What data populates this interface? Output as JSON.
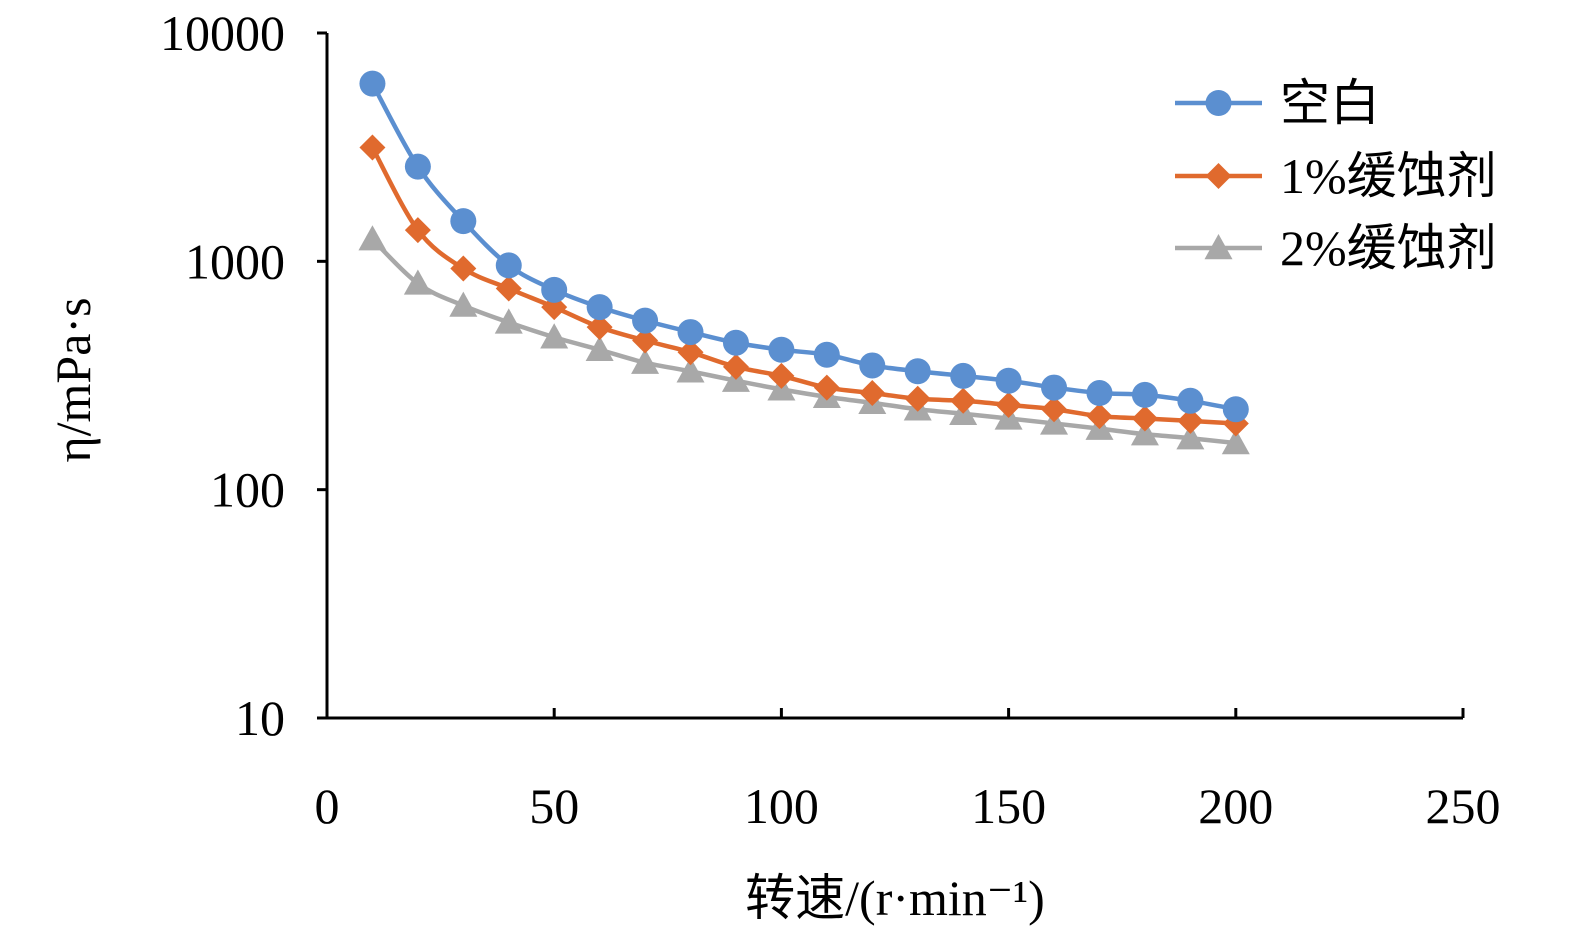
{
  "chart_data": {
    "type": "line",
    "title": "",
    "xlabel": "转速/(r·min⁻¹)",
    "ylabel": "η/mPa·s",
    "xlim": [
      0,
      250
    ],
    "ylim": [
      10,
      10000
    ],
    "yscale": "log",
    "x_ticks": [
      "0",
      "50",
      "100",
      "150",
      "200",
      "250"
    ],
    "y_ticks": [
      "10",
      "100",
      "1000",
      "10000"
    ],
    "grid": false,
    "legend_position": "top-right",
    "x": [
      10,
      20,
      30,
      40,
      50,
      60,
      70,
      80,
      90,
      100,
      110,
      120,
      130,
      140,
      150,
      160,
      170,
      180,
      190,
      200
    ],
    "series": [
      {
        "name": "空白",
        "color": "#5b8fd0",
        "marker": "circle",
        "values": [
          6000,
          2600,
          1500,
          960,
          750,
          630,
          550,
          490,
          440,
          410,
          390,
          350,
          330,
          315,
          300,
          280,
          265,
          260,
          245,
          225
        ]
      },
      {
        "name": "1%缓蚀剂",
        "color": "#e06a2e",
        "marker": "diamond",
        "values": [
          3150,
          1370,
          930,
          760,
          630,
          515,
          450,
          400,
          345,
          315,
          280,
          265,
          250,
          245,
          235,
          225,
          210,
          205,
          200,
          195
        ]
      },
      {
        "name": "2%缓蚀剂",
        "color": "#a8a8a8",
        "marker": "triangle",
        "values": [
          1250,
          800,
          640,
          540,
          465,
          410,
          360,
          330,
          300,
          275,
          255,
          240,
          225,
          215,
          205,
          195,
          185,
          175,
          168,
          160
        ]
      }
    ]
  }
}
